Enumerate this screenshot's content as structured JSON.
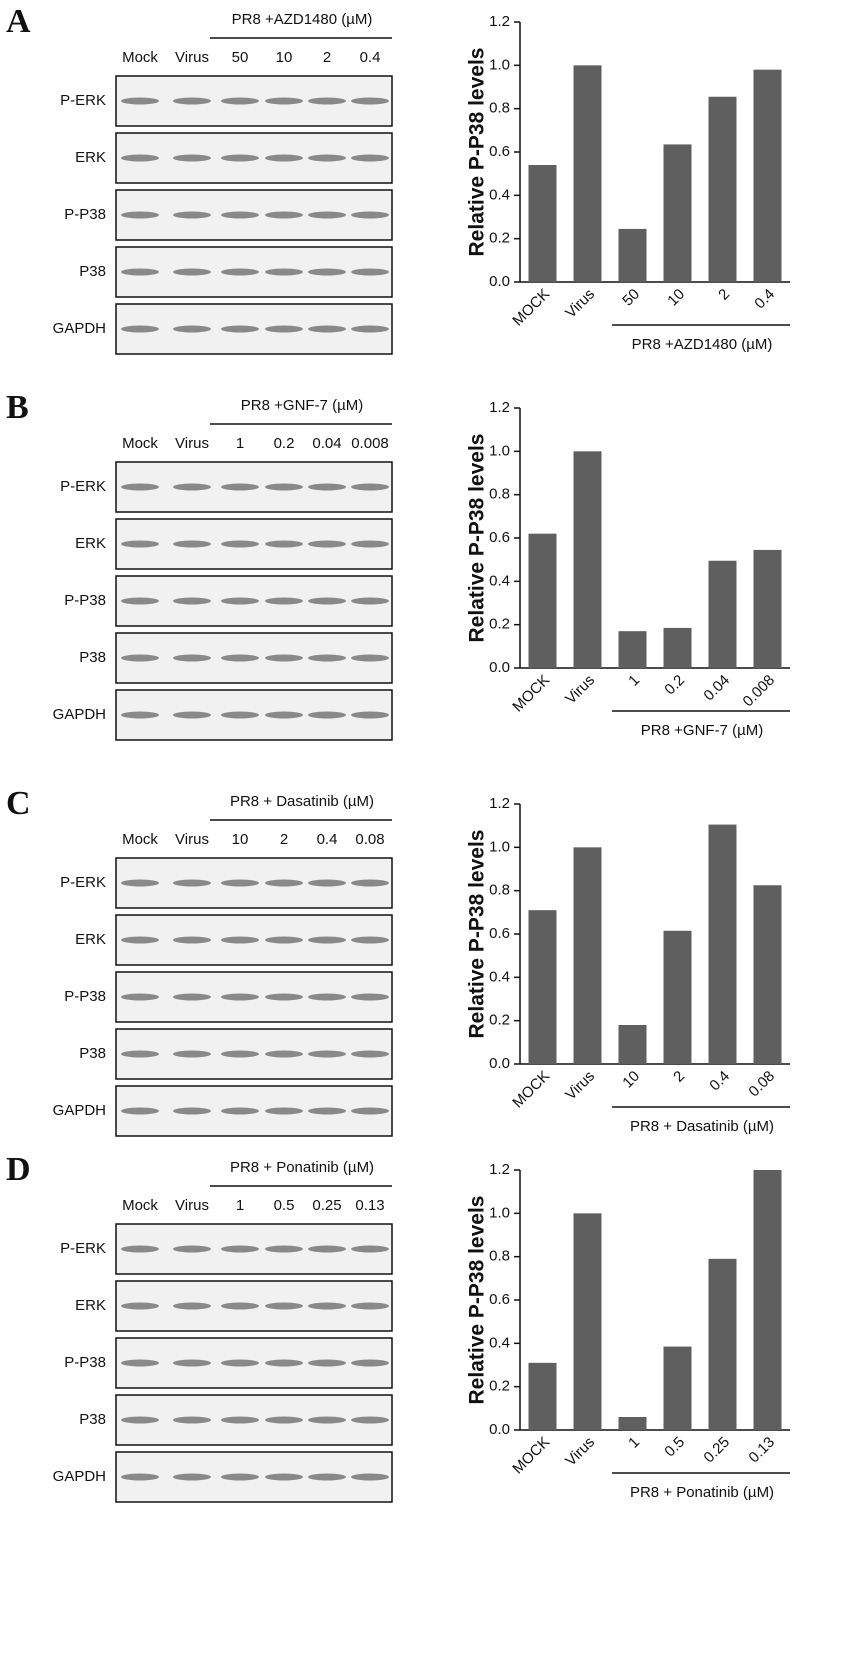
{
  "chart_data": [
    {
      "type": "bar",
      "ylabel": "Relative P-P38 levels",
      "categories": [
        "MOCK",
        "Virus",
        "50",
        "10",
        "2",
        "0.4"
      ],
      "values": [
        0.54,
        1.0,
        0.245,
        0.635,
        0.855,
        0.98
      ],
      "group_label": "PR8 +AZD1480 (µM)",
      "color": "#5f5f5f",
      "ylim": [
        0,
        1.2
      ],
      "yticks": [
        {
          "value": 0,
          "label": "0.0"
        },
        {
          "value": 0.2,
          "label": "0.2"
        },
        {
          "value": 0.4,
          "label": "0.4"
        },
        {
          "value": 0.6,
          "label": "0.6"
        },
        {
          "value": 0.8,
          "label": "0.8"
        },
        {
          "value": 1,
          "label": "1.0"
        },
        {
          "value": 1.2,
          "label": "1.2"
        }
      ]
    },
    {
      "type": "bar",
      "ylabel": "Relative P-P38 levels",
      "categories": [
        "MOCK",
        "Virus",
        "1",
        "0.2",
        "0.04",
        "0.008"
      ],
      "values": [
        0.62,
        1.0,
        0.17,
        0.185,
        0.495,
        0.545
      ],
      "group_label": "PR8 +GNF-7 (µM)",
      "color": "#5f5f5f",
      "ylim": [
        0,
        1.2
      ],
      "yticks": [
        {
          "value": 0,
          "label": "0.0"
        },
        {
          "value": 0.2,
          "label": "0.2"
        },
        {
          "value": 0.4,
          "label": "0.4"
        },
        {
          "value": 0.6,
          "label": "0.6"
        },
        {
          "value": 0.8,
          "label": "0.8"
        },
        {
          "value": 1,
          "label": "1.0"
        },
        {
          "value": 1.2,
          "label": "1.2"
        }
      ]
    },
    {
      "type": "bar",
      "ylabel": "Relative P-P38 levels",
      "categories": [
        "MOCK",
        "Virus",
        "10",
        "2",
        "0.4",
        "0.08"
      ],
      "values": [
        0.71,
        1.0,
        0.18,
        0.615,
        1.105,
        0.825
      ],
      "group_label": "PR8 + Dasatinib (µM)",
      "color": "#5f5f5f",
      "ylim": [
        0,
        1.2
      ],
      "yticks": [
        {
          "value": 0,
          "label": "0.0"
        },
        {
          "value": 0.2,
          "label": "0.2"
        },
        {
          "value": 0.4,
          "label": "0.4"
        },
        {
          "value": 0.6,
          "label": "0.6"
        },
        {
          "value": 0.8,
          "label": "0.8"
        },
        {
          "value": 1,
          "label": "1.0"
        },
        {
          "value": 1.2,
          "label": "1.2"
        }
      ]
    },
    {
      "type": "bar",
      "ylabel": "Relative P-P38 levels",
      "categories": [
        "MOCK",
        "Virus",
        "1",
        "0.5",
        "0.25",
        "0.13"
      ],
      "values": [
        0.31,
        1.0,
        0.06,
        0.385,
        0.79,
        1.2
      ],
      "group_label": "PR8 + Ponatinib (µM)",
      "color": "#5f5f5f",
      "ylim": [
        0,
        1.2
      ],
      "yticks": [
        {
          "value": 0,
          "label": "0.0"
        },
        {
          "value": 0.2,
          "label": "0.2"
        },
        {
          "value": 0.4,
          "label": "0.4"
        },
        {
          "value": 0.6,
          "label": "0.6"
        },
        {
          "value": 0.8,
          "label": "0.8"
        },
        {
          "value": 1,
          "label": "1.0"
        },
        {
          "value": 1.2,
          "label": "1.2"
        }
      ]
    }
  ],
  "blots": [
    {
      "letter": "A",
      "group_label": "PR8 +AZD1480 (µM)",
      "lanes": [
        "Mock",
        "Virus",
        "50",
        "10",
        "2",
        "0.4"
      ],
      "rows": [
        "P-ERK",
        "ERK",
        "P-P38",
        "P38",
        "GAPDH"
      ]
    },
    {
      "letter": "B",
      "group_label": "PR8 +GNF-7 (µM)",
      "lanes": [
        "Mock",
        "Virus",
        "1",
        "0.2",
        "0.04",
        "0.008"
      ],
      "rows": [
        "P-ERK",
        "ERK",
        "P-P38",
        "P38",
        "GAPDH"
      ]
    },
    {
      "letter": "C",
      "group_label": "PR8 + Dasatinib (µM)",
      "lanes": [
        "Mock",
        "Virus",
        "10",
        "2",
        "0.4",
        "0.08"
      ],
      "rows": [
        "P-ERK",
        "ERK",
        "P-P38",
        "P38",
        "GAPDH"
      ]
    },
    {
      "letter": "D",
      "group_label": "PR8 + Ponatinib (µM)",
      "lanes": [
        "Mock",
        "Virus",
        "1",
        "0.5",
        "0.25",
        "0.13"
      ],
      "rows": [
        "P-ERK",
        "ERK",
        "P-P38",
        "P38",
        "GAPDH"
      ]
    }
  ]
}
